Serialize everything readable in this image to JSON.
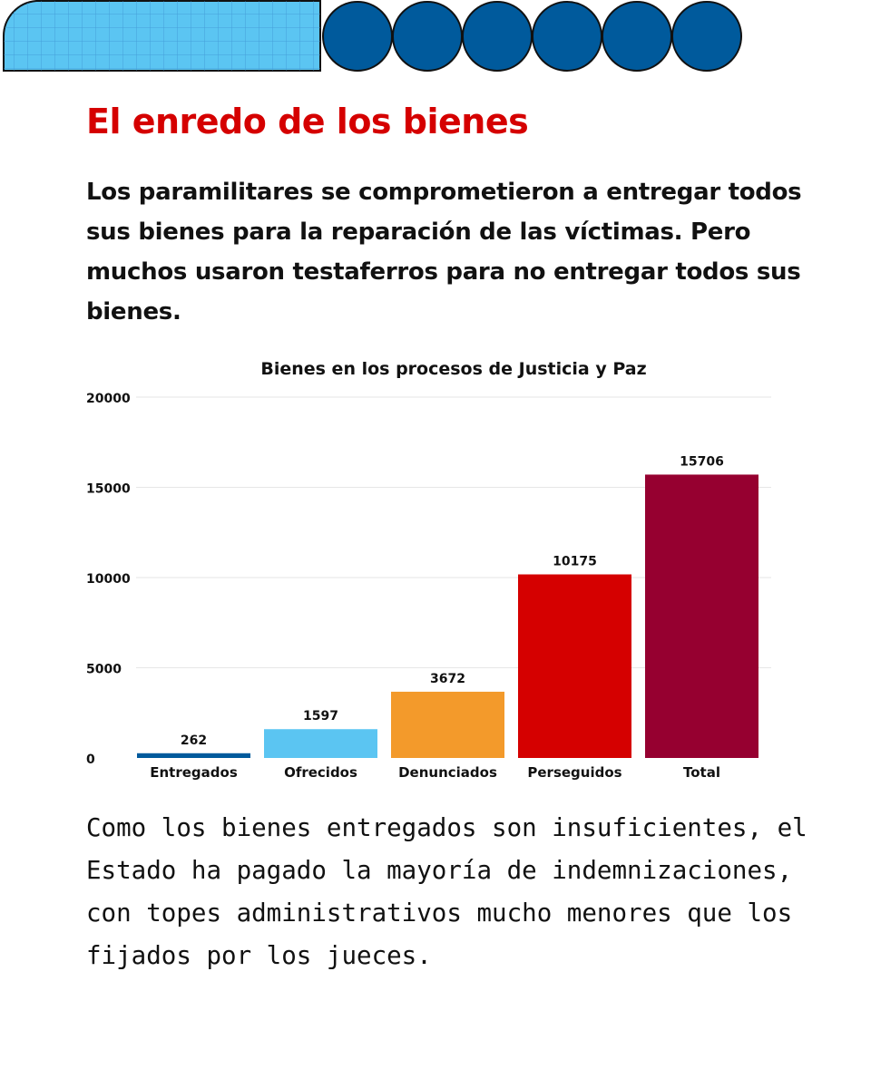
{
  "colors": {
    "title": "#d50000",
    "deco_light": "#5bc5f2",
    "deco_dark": "#005a9c",
    "grid": "#e6e6e6"
  },
  "decoration": {
    "circle_count": 6,
    "icon": "grid-pattern-banner"
  },
  "title": "El enredo de los bienes",
  "intro": "Los paramilitares se comprometieron a entregar todos sus bienes para la reparación de las víctimas. Pero muchos usaron testaferros para no entregar todos sus bienes.",
  "chart_data": {
    "type": "bar",
    "title": "Bienes en los procesos de Justicia y Paz",
    "categories": [
      "Entregados",
      "Ofrecidos",
      "Denunciados",
      "Perseguidos",
      "Total"
    ],
    "values": [
      262,
      1597,
      3672,
      10175,
      15706
    ],
    "bar_colors": [
      "#005a9c",
      "#5bc5f2",
      "#f39a2b",
      "#d50000",
      "#960030"
    ],
    "yticks": [
      0,
      5000,
      10000,
      15000,
      20000
    ],
    "ylim": [
      0,
      20000
    ],
    "xlabel": "",
    "ylabel": "",
    "grid": true
  },
  "outro": "Como los bienes entregados son insuficientes, el Estado ha pagado la mayoría de indemnizaciones, con topes administrativos mucho menores que los fijados por los jueces."
}
